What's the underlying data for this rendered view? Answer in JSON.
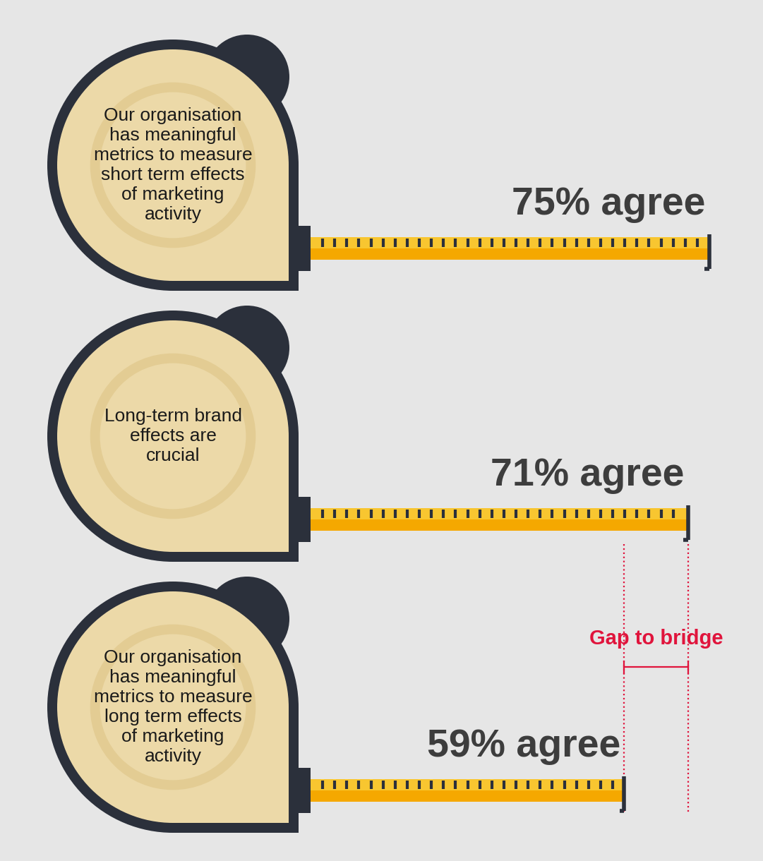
{
  "chart_data": {
    "type": "bar",
    "orientation": "horizontal",
    "categories": [
      "Our organisation has meaningful metrics to measure short term effects of marketing activity",
      "Long-term brand effects are crucial",
      "Our organisation has meaningful metrics to measure long term effects of marketing activity"
    ],
    "values": [
      75,
      71,
      59
    ],
    "value_labels": [
      "75% agree",
      "71% agree",
      "59% agree"
    ],
    "data_labels": true,
    "color": "#f5a800",
    "tick_labels": false,
    "grid": false,
    "annotations": [
      "Gap to bridge"
    ]
  }
}
